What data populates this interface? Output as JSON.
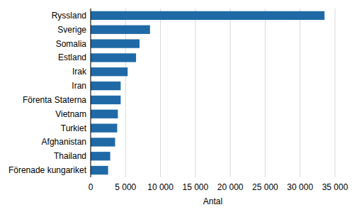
{
  "chart_data": {
    "type": "bar",
    "orientation": "horizontal",
    "categories": [
      "Ryssland",
      "Sverige",
      "Somalia",
      "Estland",
      "Irak",
      "Iran",
      "Förenta Staterna",
      "Vietnam",
      "Turkiet",
      "Afghanistan",
      "Thailand",
      "Förenade kungariket"
    ],
    "values": [
      33500,
      8500,
      7000,
      6500,
      5300,
      4300,
      4300,
      3900,
      3800,
      3500,
      2800,
      2500
    ],
    "color": "#1f6aa6",
    "xlabel": "Antal",
    "xlim": [
      0,
      35000
    ],
    "xticks": [
      0,
      {
        "value": 5000,
        "label": "5 000"
      },
      {
        "value": 10000,
        "label": "10 000"
      },
      {
        "value": 15000,
        "label": "15 000"
      },
      {
        "value": 20000,
        "label": "20 000"
      },
      {
        "value": 25000,
        "label": "25 000"
      },
      {
        "value": 30000,
        "label": "30 000"
      },
      {
        "value": 35000,
        "label": "35 000"
      }
    ],
    "grid": true
  }
}
